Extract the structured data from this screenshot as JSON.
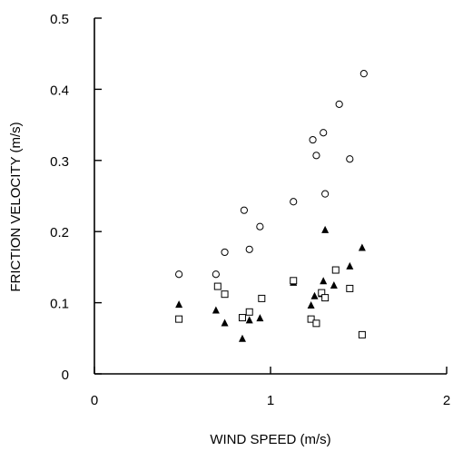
{
  "chart_data": {
    "type": "scatter",
    "xlabel": "WIND SPEED (m/s)",
    "ylabel": "FRICTION VELOCITY (m/s)",
    "xlim": [
      0,
      2
    ],
    "ylim": [
      0,
      0.5
    ],
    "x_ticks": [
      {
        "value": 0,
        "label": "0"
      },
      {
        "value": 1,
        "label": "1"
      },
      {
        "value": 2,
        "label": "2"
      }
    ],
    "y_ticks": [
      {
        "value": 0,
        "label": "0"
      },
      {
        "value": 0.1,
        "label": "0.1"
      },
      {
        "value": 0.2,
        "label": "0.2"
      },
      {
        "value": 0.3,
        "label": "0.3"
      },
      {
        "value": 0.4,
        "label": "0.4"
      },
      {
        "value": 0.5,
        "label": "0.5"
      }
    ],
    "grid": false,
    "legend": "none",
    "series": [
      {
        "marker": "open-circle",
        "points": [
          [
            0.48,
            0.14
          ],
          [
            0.69,
            0.14
          ],
          [
            0.74,
            0.171
          ],
          [
            0.85,
            0.23
          ],
          [
            0.88,
            0.175
          ],
          [
            0.94,
            0.207
          ],
          [
            1.13,
            0.242
          ],
          [
            1.24,
            0.329
          ],
          [
            1.26,
            0.307
          ],
          [
            1.3,
            0.339
          ],
          [
            1.31,
            0.253
          ],
          [
            1.39,
            0.379
          ],
          [
            1.45,
            0.302
          ],
          [
            1.53,
            0.422
          ]
        ]
      },
      {
        "marker": "filled-triangle",
        "points": [
          [
            0.48,
            0.098
          ],
          [
            0.69,
            0.09
          ],
          [
            0.74,
            0.072
          ],
          [
            0.84,
            0.05
          ],
          [
            0.88,
            0.076
          ],
          [
            0.94,
            0.079
          ],
          [
            1.13,
            0.129
          ],
          [
            1.23,
            0.097
          ],
          [
            1.25,
            0.11
          ],
          [
            1.29,
            0.113
          ],
          [
            1.3,
            0.131
          ],
          [
            1.31,
            0.203
          ],
          [
            1.36,
            0.125
          ],
          [
            1.45,
            0.152
          ],
          [
            1.52,
            0.178
          ]
        ]
      },
      {
        "marker": "open-square",
        "points": [
          [
            0.48,
            0.077
          ],
          [
            0.7,
            0.123
          ],
          [
            0.74,
            0.112
          ],
          [
            0.84,
            0.079
          ],
          [
            0.88,
            0.087
          ],
          [
            0.95,
            0.106
          ],
          [
            1.13,
            0.131
          ],
          [
            1.23,
            0.077
          ],
          [
            1.26,
            0.071
          ],
          [
            1.29,
            0.114
          ],
          [
            1.31,
            0.107
          ],
          [
            1.37,
            0.146
          ],
          [
            1.45,
            0.12
          ],
          [
            1.52,
            0.055
          ]
        ]
      }
    ]
  }
}
